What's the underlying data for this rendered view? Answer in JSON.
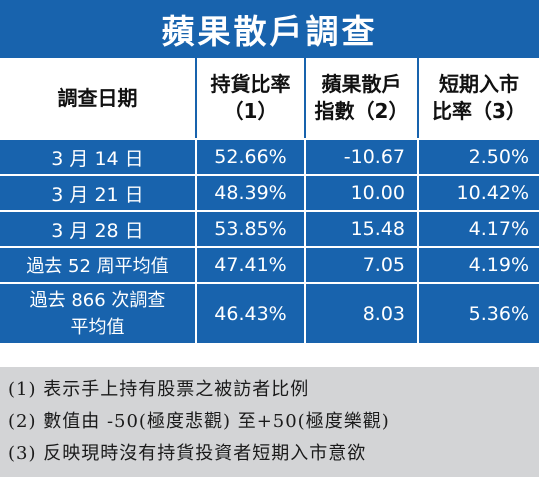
{
  "title": "蘋果散戶調查",
  "header": {
    "date": "調查日期",
    "col2_line1": "持貨比率",
    "col2_line2": "（1）",
    "col3_line1": "蘋果散戶",
    "col3_line2": "指數（2）",
    "col4_line1": "短期入市",
    "col4_line2": "比率（3）"
  },
  "rows": [
    {
      "label": "3 月 14 日",
      "ratio": "52.66%",
      "index": "-10.67",
      "entry": "2.50%"
    },
    {
      "label": "3 月 21 日",
      "ratio": "48.39%",
      "index": "10.00",
      "entry": "10.42%"
    },
    {
      "label": "3 月 28 日",
      "ratio": "53.85%",
      "index": "15.48",
      "entry": "4.17%"
    },
    {
      "label": "過去 52 周平均值",
      "ratio": "47.41%",
      "index": "7.05",
      "entry": "4.19%"
    },
    {
      "label_line1": "過去 866 次調查",
      "label_line2": "平均值",
      "ratio": "46.43%",
      "index": "8.03",
      "entry": "5.36%"
    }
  ],
  "notes": [
    "(1) 表示手上持有股票之被訪者比例",
    "(2) 數值由 -50(極度悲觀) 至+50(極度樂觀)",
    "(3) 反映現時沒有持貨投資者短期入市意欲"
  ],
  "colors": {
    "accent": "#1863ad",
    "notes_bg": "#d3d4d6"
  }
}
